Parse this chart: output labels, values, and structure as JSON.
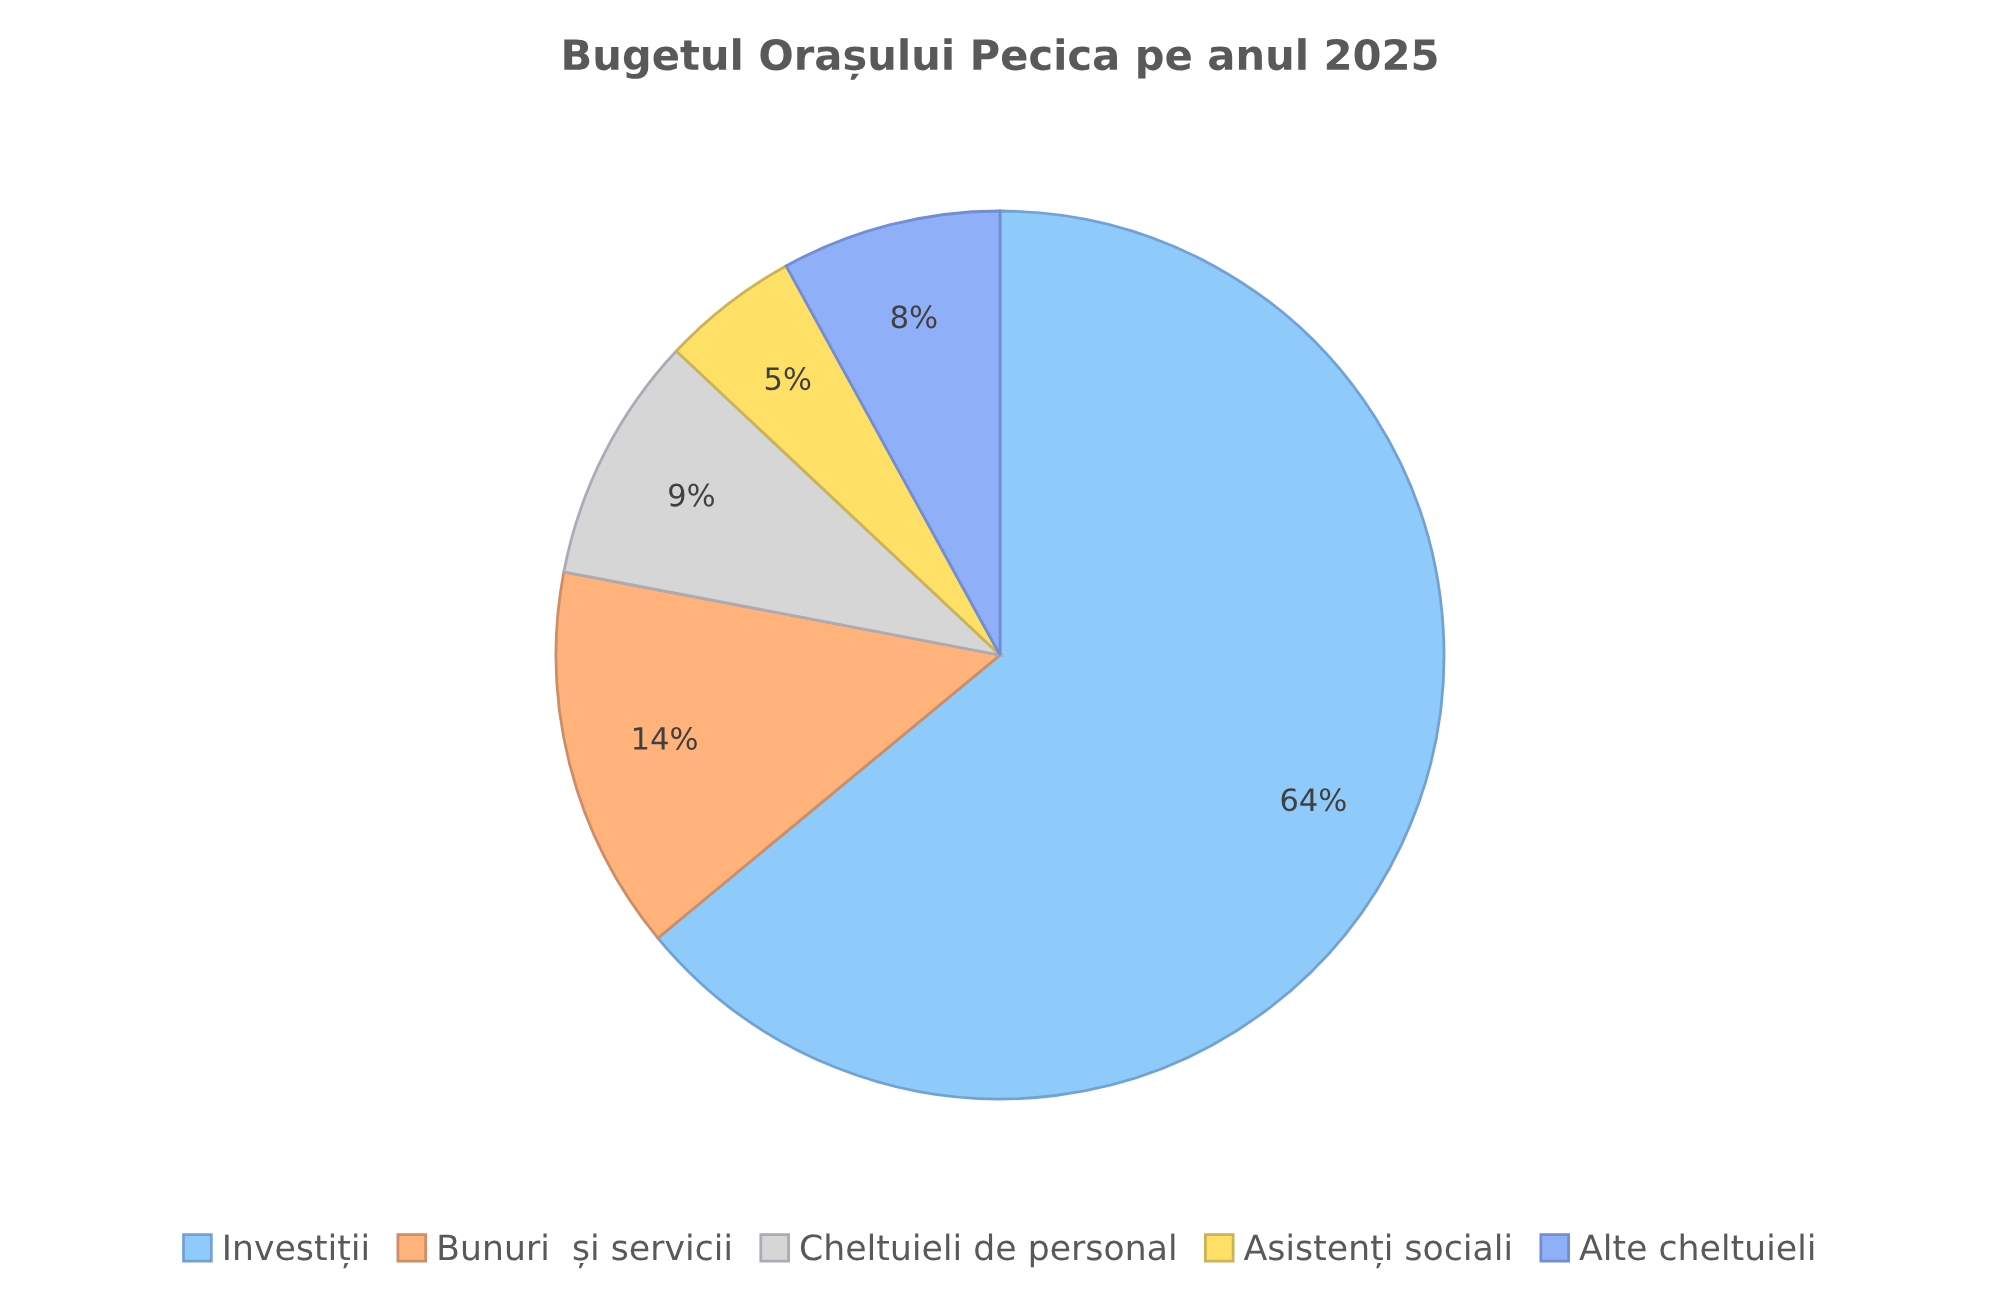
{
  "chart_data": {
    "type": "pie",
    "title": "Bugetul Orașului Pecica pe anul 2025",
    "categories": [
      "Investiții",
      "Bunuri  și servicii",
      "Cheltuieli de personal",
      "Asistenți sociali",
      "Alte cheltuieli"
    ],
    "values": [
      64,
      14,
      9,
      5,
      8
    ],
    "colors": [
      "#8ecbfb",
      "#ffb27a",
      "#d6d6d6",
      "#ffe066",
      "#8fb0f8"
    ],
    "value_labels": [
      "64%",
      "14%",
      "9%",
      "5%",
      "8%"
    ],
    "legend": "bottom"
  }
}
